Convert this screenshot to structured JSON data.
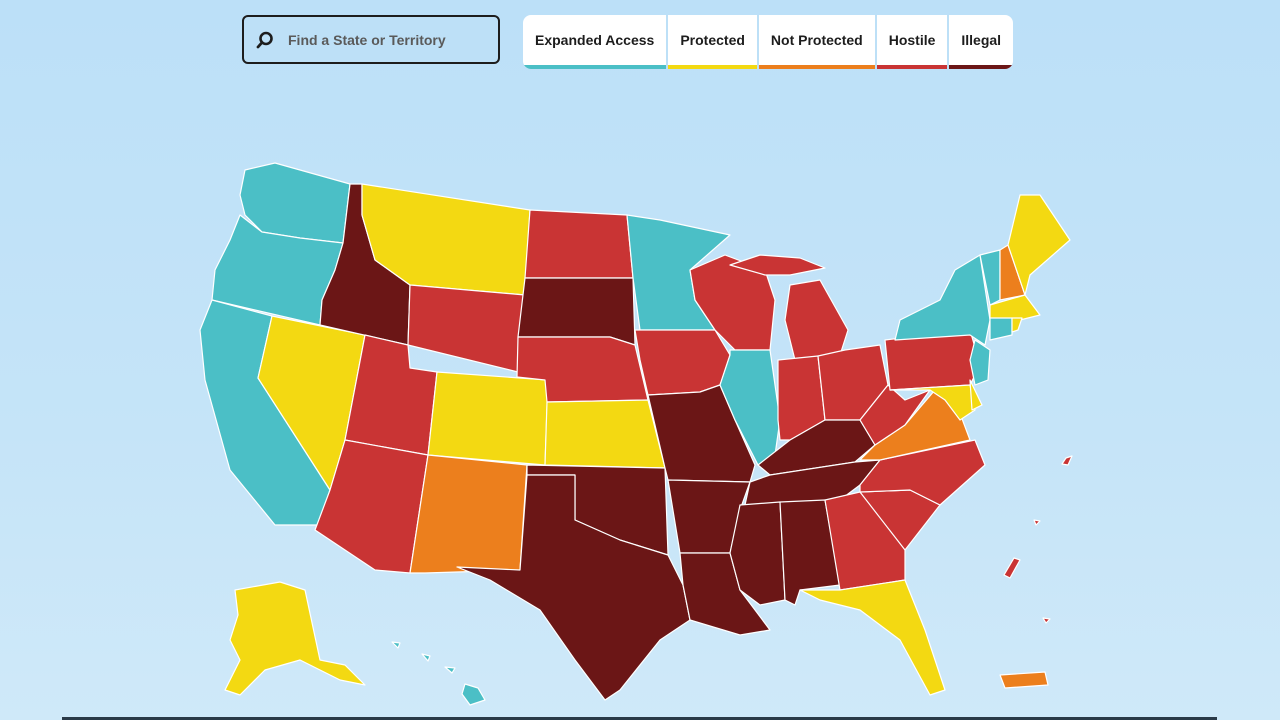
{
  "search": {
    "placeholder": "Find a State or Territory",
    "icon": "search-icon"
  },
  "legend": [
    {
      "key": "expanded",
      "label": "Expanded Access",
      "color": "#4bbfc6"
    },
    {
      "key": "protected",
      "label": "Protected",
      "color": "#f3d912"
    },
    {
      "key": "not_protected",
      "label": "Not Protected",
      "color": "#ec7f1d"
    },
    {
      "key": "hostile",
      "label": "Hostile",
      "color": "#c93434"
    },
    {
      "key": "illegal",
      "label": "Illegal",
      "color": "#6b1616"
    }
  ],
  "map": {
    "states": {
      "WA": "expanded",
      "OR": "expanded",
      "CA": "expanded",
      "MN": "expanded",
      "IL": "expanded",
      "NY": "expanded",
      "VT": "expanded",
      "NJ": "expanded",
      "CT": "expanded",
      "HI": "expanded",
      "MT": "protected",
      "NV": "protected",
      "CO": "protected",
      "KS": "protected",
      "AK": "protected",
      "FL": "protected",
      "ME": "protected",
      "MA": "protected",
      "MD": "protected",
      "DE": "protected",
      "RI": "protected",
      "NM": "not_protected",
      "VA": "not_protected",
      "NH": "not_protected",
      "PR": "not_protected",
      "ND": "hostile",
      "WY": "hostile",
      "UT": "hostile",
      "AZ": "hostile",
      "NE": "hostile",
      "IA": "hostile",
      "WI": "hostile",
      "MI": "hostile",
      "IN": "hostile",
      "OH": "hostile",
      "PA": "hostile",
      "WV": "hostile",
      "NC": "hostile",
      "SC": "hostile",
      "GA": "hostile",
      "GU": "hostile",
      "MP": "hostile",
      "AS": "hostile",
      "VI": "hostile",
      "ID": "illegal",
      "SD": "illegal",
      "OK": "illegal",
      "TX": "illegal",
      "MO": "illegal",
      "AR": "illegal",
      "LA": "illegal",
      "MS": "illegal",
      "AL": "illegal",
      "TN": "illegal",
      "KY": "illegal"
    }
  }
}
